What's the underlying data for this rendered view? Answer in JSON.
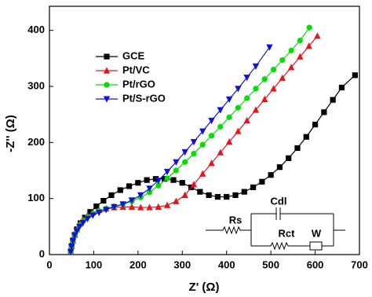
{
  "chart_data": {
    "type": "line",
    "x_label": "Z' (Ω)",
    "y_label": "-Z'' (Ω)",
    "xlim": [
      0,
      700
    ],
    "ylim": [
      0,
      443
    ],
    "xticks": [
      0,
      100,
      200,
      300,
      400,
      500,
      600,
      700
    ],
    "yticks": [
      0,
      100,
      200,
      300,
      400
    ],
    "legend": "upper left",
    "series": [
      {
        "name": "GCE",
        "color": "#000000",
        "marker": "square",
        "x": [
          48,
          50,
          53,
          57,
          62,
          70,
          80,
          92,
          106,
          122,
          140,
          160,
          180,
          200,
          220,
          240,
          260,
          280,
          300,
          320,
          340,
          360,
          380,
          400,
          420,
          440,
          460,
          480,
          500,
          520,
          540,
          560,
          580,
          600,
          620,
          640,
          660,
          690
        ],
        "values": [
          5,
          15,
          25,
          35,
          45,
          56,
          66,
          76,
          86,
          96,
          106,
          115,
          122,
          128,
          133,
          135,
          135,
          133,
          128,
          120,
          112,
          106,
          103,
          103,
          106,
          112,
          120,
          130,
          142,
          156,
          172,
          190,
          210,
          232,
          254,
          276,
          298,
          320
        ]
      },
      {
        "name": "Pt/VC",
        "color": "#e8141b",
        "marker": "triangle",
        "x": [
          48,
          50,
          53,
          57,
          62,
          68,
          76,
          86,
          98,
          112,
          128,
          146,
          166,
          186,
          206,
          226,
          246,
          266,
          286,
          306,
          326,
          346,
          366,
          386,
          406,
          426,
          446,
          466,
          486,
          506,
          526,
          546,
          566,
          586,
          605
        ],
        "values": [
          5,
          15,
          25,
          35,
          45,
          55,
          63,
          70,
          75,
          79,
          82,
          84,
          85,
          85,
          84,
          84,
          85,
          88,
          95,
          106,
          125,
          144,
          163,
          182,
          201,
          220,
          239,
          258,
          277,
          296,
          315,
          334,
          353,
          372,
          390
        ]
      },
      {
        "name": "Pt/rGO",
        "color": "#00e000",
        "marker": "circle",
        "x": [
          48,
          50,
          53,
          57,
          62,
          68,
          76,
          86,
          98,
          112,
          128,
          146,
          166,
          186,
          206,
          226,
          246,
          266,
          286,
          306,
          326,
          346,
          366,
          386,
          406,
          426,
          446,
          466,
          486,
          506,
          526,
          546,
          566,
          587
        ],
        "values": [
          5,
          14,
          24,
          34,
          43,
          52,
          60,
          67,
          73,
          78,
          82,
          86,
          90,
          95,
          102,
          111,
          123,
          136,
          150,
          165,
          180,
          196,
          212,
          228,
          245,
          262,
          279,
          296,
          313,
          330,
          347,
          364,
          382,
          405
        ]
      },
      {
        "name": "Pt/S-rGO",
        "color": "#1010e0",
        "marker": "triangle-down",
        "x": [
          48,
          50,
          53,
          57,
          62,
          68,
          76,
          86,
          98,
          112,
          128,
          146,
          166,
          186,
          206,
          226,
          246,
          266,
          286,
          306,
          326,
          346,
          366,
          386,
          406,
          426,
          446,
          466,
          497
        ],
        "values": [
          5,
          14,
          24,
          34,
          42,
          50,
          57,
          64,
          70,
          75,
          80,
          85,
          90,
          97,
          106,
          118,
          132,
          148,
          165,
          183,
          201,
          220,
          239,
          258,
          277,
          296,
          316,
          336,
          370
        ]
      }
    ],
    "circuit_labels": [
      "Rs",
      "Cdl",
      "Rct",
      "W"
    ]
  }
}
